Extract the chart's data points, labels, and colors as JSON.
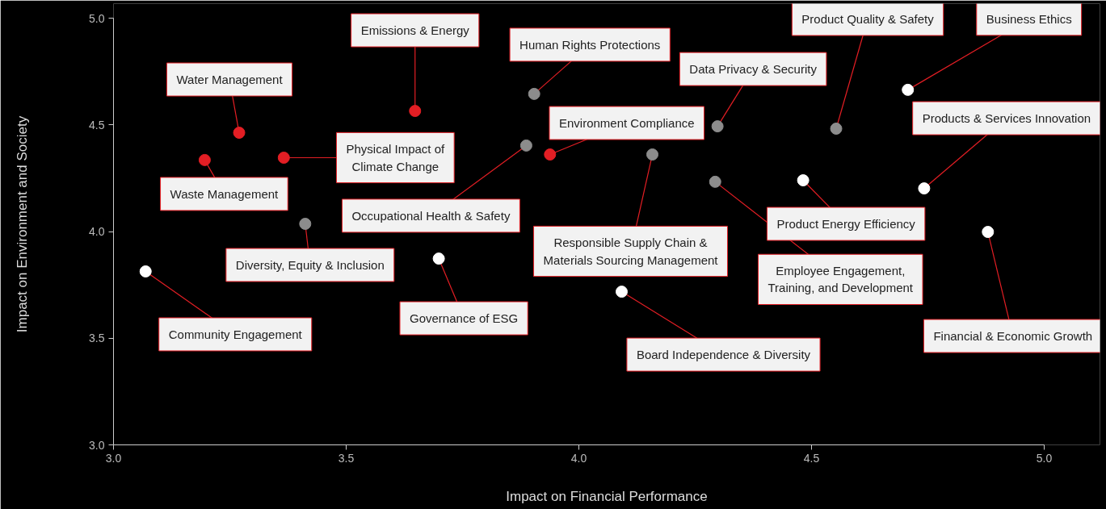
{
  "chart_data": {
    "type": "scatter",
    "xlabel": "Impact on Financial Performance",
    "ylabel": "Impact on Environment and Society",
    "xlim": [
      3.0,
      5.0
    ],
    "ylim": [
      3.0,
      5.0
    ],
    "xticks": [
      {
        "value": 3,
        "label": "3.0"
      },
      3.5,
      {
        "value": 4,
        "label": "4.0"
      },
      4.5,
      {
        "value": 5,
        "label": "5.0"
      }
    ],
    "yticks": [
      {
        "value": 3,
        "label": "3.0"
      },
      3.5,
      {
        "value": 4,
        "label": "4.0"
      },
      4.5,
      {
        "value": 5,
        "label": "5.0"
      }
    ],
    "grid": false,
    "marker": "circle",
    "series": [
      {
        "color": "#e31e24",
        "x": [
          3.27,
          3.648,
          3.196,
          3.366,
          3.938
        ],
        "values": [
          4.463,
          4.565,
          4.335,
          4.346,
          4.361
        ]
      },
      {
        "color": "#8c8c8c",
        "x": [
          3.904,
          3.887,
          3.412,
          4.158,
          4.298,
          4.293,
          4.553
        ],
        "values": [
          4.645,
          4.403,
          4.036,
          4.361,
          4.493,
          4.233,
          4.482
        ]
      },
      {
        "color": "#ffffff",
        "x": [
          3.069,
          3.699,
          4.092,
          4.482,
          4.707,
          4.742,
          4.879
        ],
        "values": [
          3.813,
          3.873,
          3.718,
          4.24,
          4.664,
          4.202,
          3.998
        ]
      }
    ],
    "annotations": [
      {
        "text": "Water Management",
        "x": 3.27,
        "y": 4.463
      },
      {
        "text": "Emissions & Energy",
        "x": 3.648,
        "y": 4.565
      },
      {
        "text": "Waste Management",
        "x": 3.196,
        "y": 4.335
      },
      {
        "text": "Physical Impact of\nClimate Change",
        "x": 3.366,
        "y": 4.346
      },
      {
        "text": "Environment Compliance",
        "x": 3.938,
        "y": 4.361
      },
      {
        "text": "Human Rights Protections",
        "x": 3.904,
        "y": 4.645
      },
      {
        "text": "Occupational Health & Safety",
        "x": 3.887,
        "y": 4.403
      },
      {
        "text": "Diversity, Equity & Inclusion",
        "x": 3.412,
        "y": 4.036
      },
      {
        "text": "Responsible Supply Chain &\nMaterials Sourcing Management",
        "x": 4.158,
        "y": 4.361
      },
      {
        "text": "Data Privacy & Security",
        "x": 4.298,
        "y": 4.493
      },
      {
        "text": "Employee Engagement,\nTraining, and Development",
        "x": 4.293,
        "y": 4.233
      },
      {
        "text": "Product Quality & Safety",
        "x": 4.553,
        "y": 4.482
      },
      {
        "text": "Community Engagement",
        "x": 3.069,
        "y": 3.813
      },
      {
        "text": "Governance of ESG",
        "x": 3.699,
        "y": 3.873
      },
      {
        "text": "Board Independence & Diversity",
        "x": 4.092,
        "y": 3.718
      },
      {
        "text": "Product Energy Efficiency",
        "x": 4.482,
        "y": 4.24
      },
      {
        "text": "Business Ethics",
        "x": 4.707,
        "y": 4.664
      },
      {
        "text": "Products & Services Innovation",
        "x": 4.742,
        "y": 4.202
      },
      {
        "text": "Financial & Economic Growth",
        "x": 4.879,
        "y": 3.998
      }
    ]
  }
}
